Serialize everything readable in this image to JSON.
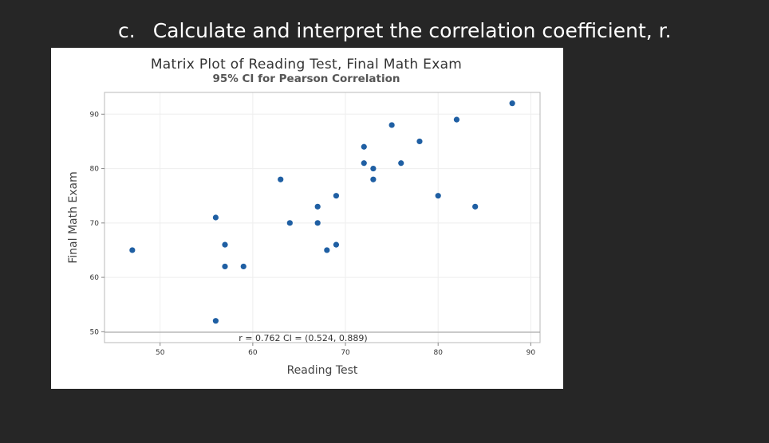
{
  "slide": {
    "item_letter": "c.",
    "instruction": "Calculate and interpret the correlation coefficient, r."
  },
  "chart_data": {
    "type": "scatter",
    "title": "Matrix Plot of Reading Test, Final Math Exam",
    "subtitle": "95% CI for Pearson Correlation",
    "xlabel": "Reading Test",
    "ylabel": "Final Math Exam",
    "xlim": [
      44,
      91
    ],
    "ylim": [
      48,
      94
    ],
    "xticks": [
      50,
      60,
      70,
      80,
      90
    ],
    "yticks": [
      50,
      60,
      70,
      80,
      90
    ],
    "grid": true,
    "point_color": "#1f5fa3",
    "annotation": "r = 0.762  CI = (0.524, 0.889)",
    "points": [
      {
        "x": 47,
        "y": 65
      },
      {
        "x": 56,
        "y": 52
      },
      {
        "x": 56,
        "y": 71
      },
      {
        "x": 57,
        "y": 66
      },
      {
        "x": 57,
        "y": 62
      },
      {
        "x": 59,
        "y": 62
      },
      {
        "x": 63,
        "y": 78
      },
      {
        "x": 64,
        "y": 70
      },
      {
        "x": 67,
        "y": 73
      },
      {
        "x": 67,
        "y": 70
      },
      {
        "x": 68,
        "y": 65
      },
      {
        "x": 69,
        "y": 75
      },
      {
        "x": 69,
        "y": 66
      },
      {
        "x": 72,
        "y": 84
      },
      {
        "x": 72,
        "y": 81
      },
      {
        "x": 73,
        "y": 80
      },
      {
        "x": 73,
        "y": 78
      },
      {
        "x": 75,
        "y": 88
      },
      {
        "x": 76,
        "y": 81
      },
      {
        "x": 78,
        "y": 85
      },
      {
        "x": 80,
        "y": 75
      },
      {
        "x": 82,
        "y": 89
      },
      {
        "x": 84,
        "y": 73
      },
      {
        "x": 88,
        "y": 92
      }
    ]
  }
}
